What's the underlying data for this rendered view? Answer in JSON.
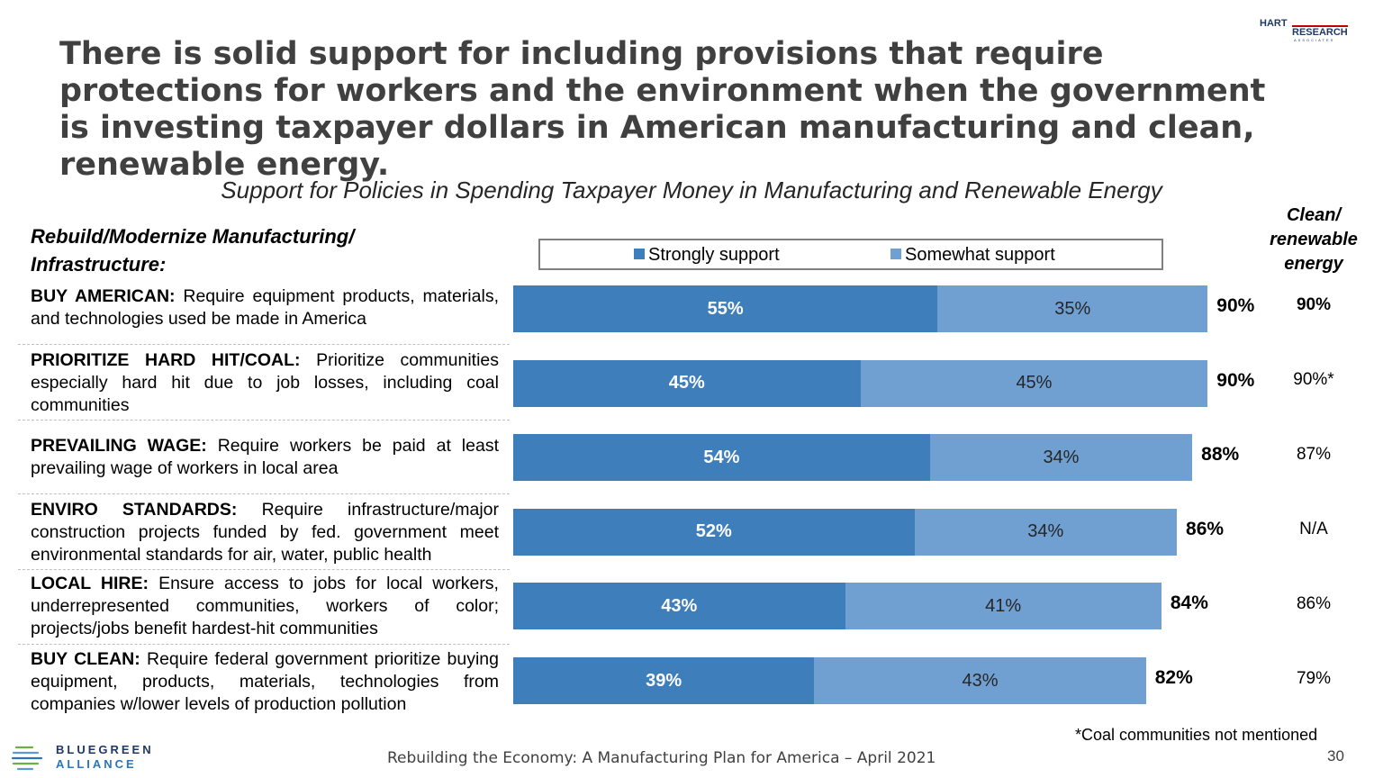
{
  "title": "There is solid support for including provisions that require protections for workers and the environment when the government is investing taxpayer dollars in American manufacturing and clean, renewable energy.",
  "logo": {
    "line1": "HART",
    "line2": "RESEARCH",
    "line3": "ASSOCIATES"
  },
  "section_heading": [
    "Rebuild/Modernize Manufacturing/",
    "Infrastructure:"
  ],
  "column_heading": [
    "Clean/",
    "renewable",
    "energy"
  ],
  "rows": [
    {
      "name": "BUY AMERICAN:",
      "desc": " Require equipment products, materials, and technologies used be made in America",
      "clean": "90%"
    },
    {
      "name": "PRIORITIZE HARD HIT/COAL:",
      "desc": " Prioritize communities especially hard hit due to job losses, including coal communities",
      "clean": "90%*"
    },
    {
      "name": "PREVAILING WAGE:",
      "desc": " Require workers be paid at least prevailing wage of workers in local area",
      "clean": "87%"
    },
    {
      "name": "ENVIRO STANDARDS:",
      "desc": " Require infrastructure/major construction projects funded by fed. government meet environmental standards for air, water, public health",
      "clean": "N/A"
    },
    {
      "name": "LOCAL HIRE:",
      "desc": " Ensure access to jobs for local workers, underrepresented communities, workers of color; projects/jobs benefit hardest-hit communities",
      "clean": "86%"
    },
    {
      "name": "BUY CLEAN:",
      "desc": " Require federal government prioritize buying equipment, products, materials, technologies from companies w/lower levels of production pollution",
      "clean": "79%"
    }
  ],
  "chart_data": {
    "type": "bar",
    "orientation": "horizontal",
    "stacked": true,
    "title": "Support for Policies in Spending Taxpayer Money in Manufacturing and Renewable Energy",
    "categories": [
      "BUY AMERICAN",
      "PRIORITIZE HARD HIT/COAL",
      "PREVAILING WAGE",
      "ENVIRO STANDARDS",
      "LOCAL HIRE",
      "BUY CLEAN"
    ],
    "series": [
      {
        "name": "Strongly support",
        "values": [
          55,
          45,
          54,
          52,
          43,
          39
        ],
        "color": "#3d7ebb"
      },
      {
        "name": "Somewhat support",
        "values": [
          35,
          45,
          34,
          34,
          41,
          43
        ],
        "color": "#70a0d2"
      }
    ],
    "totals": [
      90,
      90,
      88,
      86,
      84,
      82
    ],
    "value_suffix": "%",
    "xlim": [
      0,
      100
    ],
    "legend": "top",
    "grid": false
  },
  "footnote": "*Coal communities not mentioned",
  "footer": "Rebuilding the Economy: A Manufacturing Plan for America – April 2021",
  "page_number": "30",
  "org_logo": {
    "line1": "BLUEGREEN",
    "line2": "ALLIANCE"
  }
}
